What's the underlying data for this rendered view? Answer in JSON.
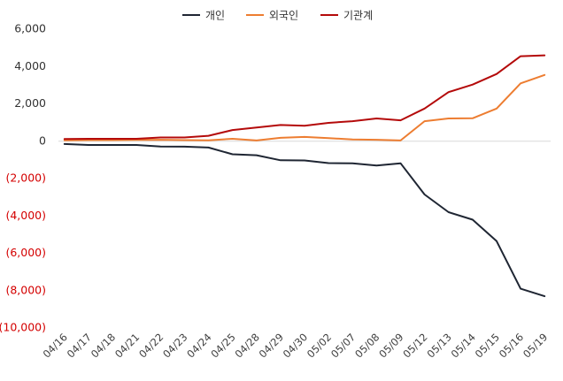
{
  "chart_data": {
    "type": "line",
    "title": "",
    "xlabel": "",
    "ylabel": "",
    "ylim": [
      -10000,
      6000
    ],
    "yticks": [
      6000,
      4000,
      2000,
      0,
      -2000,
      -4000,
      -6000,
      -8000,
      -10000
    ],
    "ytick_labels": [
      "6,000",
      "4,000",
      "2,000",
      "0",
      "(2,000)",
      "(4,000)",
      "(6,000)",
      "(8,000)",
      "(10,000)"
    ],
    "negative_tick_color": "#d40000",
    "positive_tick_color": "#333333",
    "grid": false,
    "zero_line": true,
    "legend_position": "top-center",
    "categories": [
      "04/16",
      "04/17",
      "04/18",
      "04/21",
      "04/22",
      "04/23",
      "04/24",
      "04/25",
      "04/28",
      "04/29",
      "04/30",
      "05/02",
      "05/07",
      "05/08",
      "05/09",
      "05/12",
      "05/13",
      "05/14",
      "05/15",
      "05/16",
      "05/19"
    ],
    "series": [
      {
        "name": "개인",
        "color": "#1f2633",
        "values": [
          -150,
          -200,
          -200,
          -200,
          -280,
          -290,
          -340,
          -700,
          -750,
          -1020,
          -1030,
          -1170,
          -1180,
          -1300,
          -1180,
          -2850,
          -3800,
          -4200,
          -5350,
          -7900,
          -8300
        ]
      },
      {
        "name": "외국인",
        "color": "#ed7d31",
        "values": [
          50,
          60,
          60,
          70,
          80,
          60,
          50,
          130,
          40,
          180,
          230,
          170,
          90,
          80,
          40,
          1070,
          1220,
          1230,
          1750,
          3100,
          3550
        ]
      },
      {
        "name": "기관계",
        "color": "#b40a0a",
        "values": [
          120,
          130,
          130,
          130,
          200,
          200,
          290,
          600,
          730,
          870,
          830,
          980,
          1070,
          1220,
          1120,
          1750,
          2630,
          3030,
          3600,
          4550,
          4600
        ]
      }
    ]
  }
}
